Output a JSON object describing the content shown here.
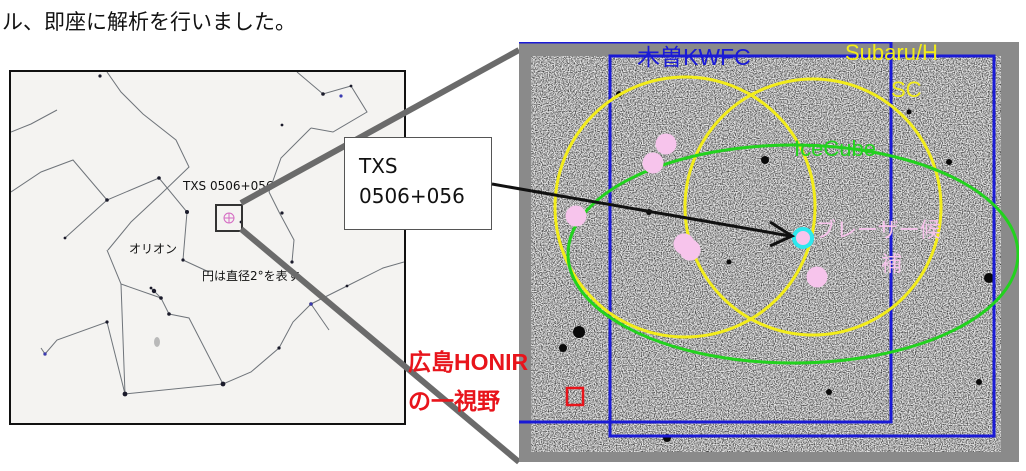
{
  "caption": "ル、即座に解析を行いました。",
  "starmap": {
    "source_label": "TXS 0506+056",
    "constellation_label": "オリオン",
    "circle_note": "円は直径2°を表す"
  },
  "callout": {
    "line1": "TXS",
    "line2": "0506+056"
  },
  "survey_image": {
    "labels": {
      "kiso": "木曽KWFC",
      "subaru_line1": "Subaru/H",
      "subaru_line2": "SC",
      "icecube": "IceCube",
      "blazar_line1": "ブレーザー候",
      "blazar_line2": "補",
      "honir_line1": "広島HONIR",
      "honir_line2": "の一視野"
    },
    "colors": {
      "kiso": "#1a1ad6",
      "subaru": "#f2ec1a",
      "icecube": "#22d21e",
      "honir": "#e8141b",
      "candidate": "#f7c4ec",
      "blazar": "#2ee8ee"
    }
  }
}
